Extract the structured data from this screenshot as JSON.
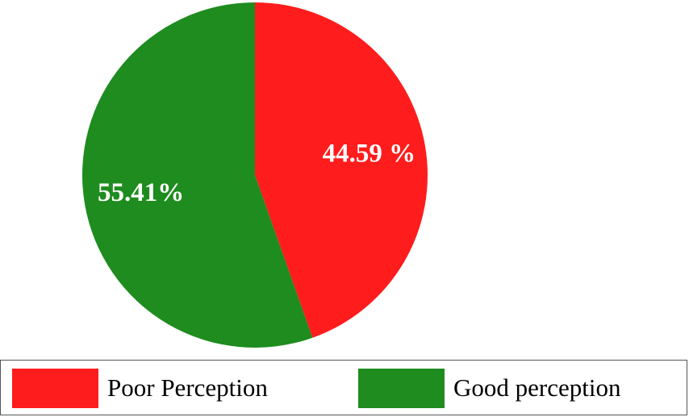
{
  "chart_data": {
    "type": "pie",
    "title": "",
    "slices": [
      {
        "name": "Poor Perception",
        "value": 44.59,
        "label": "44.59 %",
        "color": "#ff1c1c"
      },
      {
        "name": "Good perception",
        "value": 55.41,
        "label": "55.41%",
        "color": "#1e8c1e"
      }
    ],
    "start_angle": "12 o'clock",
    "direction": "clockwise",
    "legend": {
      "position": "bottom",
      "entries": [
        "Poor Perception",
        "Good perception"
      ]
    }
  }
}
